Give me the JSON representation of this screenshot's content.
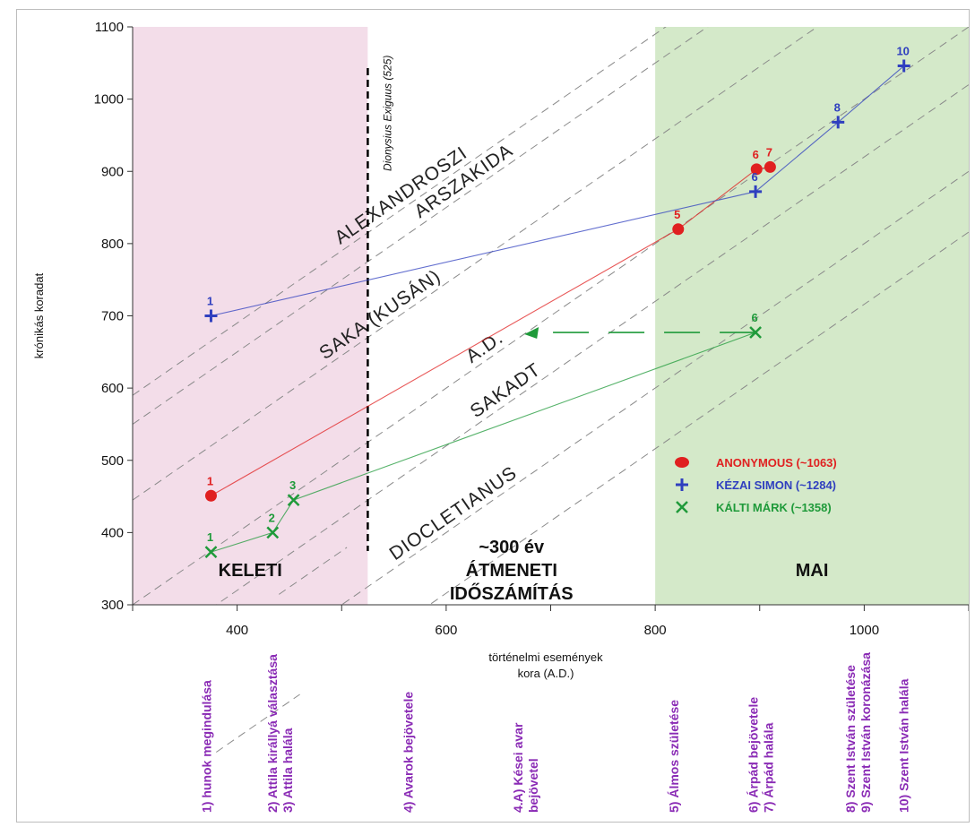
{
  "chart_data": {
    "type": "line",
    "xlabel": [
      "történelmi események",
      "kora (A.D.)"
    ],
    "ylabel": "krónikás koradat",
    "xlim": [
      300,
      1100
    ],
    "ylim": [
      300,
      1100
    ],
    "xticks": [
      400,
      600,
      800,
      1000
    ],
    "yticks": [
      300,
      400,
      500,
      600,
      700,
      800,
      900,
      1000,
      1100
    ],
    "regions": [
      {
        "name": "keleti",
        "x0": 300,
        "x1": 525,
        "color": "#f3dde9",
        "label": [
          "KELETI"
        ]
      },
      {
        "name": "atmeneti",
        "x0": 525,
        "x1": 800,
        "color": "#ffffff",
        "label": [
          "~300 év",
          "ÁTMENETI",
          "IDŐSZÁMÍTÁS"
        ]
      },
      {
        "name": "mai",
        "x0": 800,
        "x1": 1100,
        "color": "#d4e9c9",
        "label": [
          "MAI"
        ]
      }
    ],
    "vline": {
      "x": 525,
      "label": "Dionysius Exiguus (525)"
    },
    "diagonals": [
      {
        "name": "ALEXANDROSZI",
        "offset": 290,
        "label_x": 560
      },
      {
        "name": "ARSZAKIDA",
        "offset": 250,
        "label_x": 620
      },
      {
        "name": "SAKA (KUSÁN)",
        "offset": 145,
        "label_x": 540
      },
      {
        "name": "A.D.",
        "offset": 0,
        "label_x": 640
      },
      {
        "name": "SAKADT",
        "offset": -80,
        "label_x": 660
      },
      {
        "name": "DIOCLETIANUS",
        "offset": -200,
        "label_x": 610
      }
    ],
    "diagonal_offsets_extra": [
      290,
      250,
      145,
      0,
      -80,
      -200,
      -284
    ],
    "series": [
      {
        "name": "ANONYMOUS (~1063)",
        "color": "#e02020",
        "marker": "circle",
        "points": [
          {
            "x": 375,
            "y": 451,
            "label": "1"
          },
          {
            "x": 822,
            "y": 820,
            "label": "5"
          },
          {
            "x": 897,
            "y": 903,
            "label": "6"
          },
          {
            "x": 910,
            "y": 906,
            "label": "7"
          }
        ]
      },
      {
        "name": "KÉZAI SIMON (~1284)",
        "color": "#2f3fbf",
        "marker": "plus",
        "points": [
          {
            "x": 375,
            "y": 700,
            "label": "1"
          },
          {
            "x": 896,
            "y": 872,
            "label": "6"
          },
          {
            "x": 975,
            "y": 968,
            "label": "8"
          },
          {
            "x": 1038,
            "y": 1046,
            "label": "10"
          }
        ]
      },
      {
        "name": "KÁLTI MÁRK (~1358)",
        "color": "#1f9a3a",
        "marker": "x",
        "points": [
          {
            "x": 375,
            "y": 373,
            "label": "1"
          },
          {
            "x": 434,
            "y": 400,
            "label": "2"
          },
          {
            "x": 454,
            "y": 445,
            "label": "3"
          },
          {
            "x": 896,
            "y": 677,
            "label": "6"
          }
        ]
      }
    ],
    "kalti_shift": {
      "from_x": 896,
      "to_x": 680,
      "y": 677,
      "color": "#1f9a3a"
    },
    "events": [
      {
        "x": 375,
        "lines": [
          "1) hunok megindulása"
        ]
      },
      {
        "x": 445,
        "lines": [
          "2) Attila királlyá választása",
          "3) Attila halála"
        ]
      },
      {
        "x": 568,
        "lines": [
          "4) Avarok bejövetele"
        ]
      },
      {
        "x": 680,
        "lines": [
          "4.A) Kései avar",
          "bejövetel"
        ]
      },
      {
        "x": 822,
        "lines": [
          "5) Álmos születése"
        ]
      },
      {
        "x": 905,
        "lines": [
          "6) Árpád bejövetele",
          "7) Árpád halála"
        ]
      },
      {
        "x": 998,
        "lines": [
          "8) Szent István születése",
          "9) Szent István koronázása"
        ]
      },
      {
        "x": 1042,
        "lines": [
          "10) Szent István halála"
        ]
      }
    ]
  }
}
